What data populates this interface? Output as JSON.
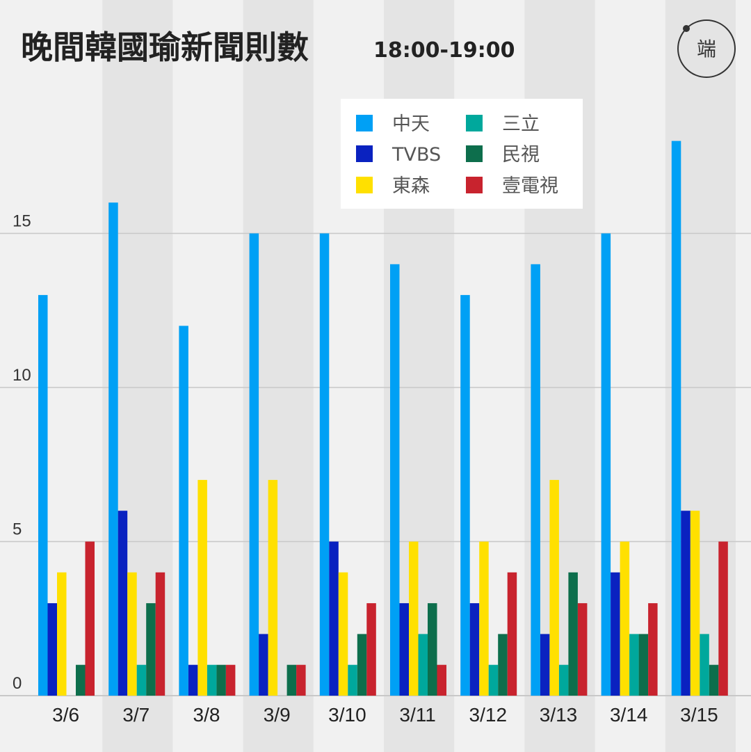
{
  "header": {
    "title": "晚間韓國瑜新聞則數",
    "subtitle": "18:00-19:00"
  },
  "logo": {
    "icon": "theinitium-logo-icon",
    "text": "端"
  },
  "colors": {
    "background": "#f1f1f1",
    "band_alt": "#e4e4e4",
    "grid": "#c8c8c8"
  },
  "chart_data": {
    "type": "bar",
    "title": "晚間韓國瑜新聞則數",
    "subtitle": "18:00-19:00",
    "xlabel": "",
    "ylabel": "",
    "ylim": [
      0,
      18.5
    ],
    "yticks": [
      0,
      5,
      10,
      15
    ],
    "grid": true,
    "legend_position": "top-right",
    "categories": [
      "3/6",
      "3/7",
      "3/8",
      "3/9",
      "3/10",
      "3/11",
      "3/12",
      "3/13",
      "3/14",
      "3/15"
    ],
    "series": [
      {
        "name": "中天",
        "color": "#00a0f5",
        "values": [
          13,
          16,
          12,
          15,
          15,
          14,
          13,
          14,
          15,
          18
        ]
      },
      {
        "name": "TVBS",
        "color": "#0a22c0",
        "values": [
          3,
          6,
          1,
          2,
          5,
          3,
          3,
          2,
          4,
          6
        ]
      },
      {
        "name": "東森",
        "color": "#ffe000",
        "values": [
          4,
          4,
          7,
          7,
          4,
          5,
          5,
          7,
          5,
          6
        ]
      },
      {
        "name": "三立",
        "color": "#00a89c",
        "values": [
          0,
          1,
          1,
          0,
          1,
          2,
          1,
          1,
          2,
          2
        ]
      },
      {
        "name": "民視",
        "color": "#0d6e4c",
        "values": [
          1,
          3,
          1,
          1,
          2,
          3,
          2,
          4,
          2,
          1
        ]
      },
      {
        "name": "壹電視",
        "color": "#c8232e",
        "values": [
          5,
          4,
          1,
          1,
          3,
          1,
          4,
          3,
          3,
          5
        ]
      }
    ],
    "legend_order": [
      "中天",
      "三立",
      "TVBS",
      "民視",
      "東森",
      "壹電視"
    ]
  }
}
